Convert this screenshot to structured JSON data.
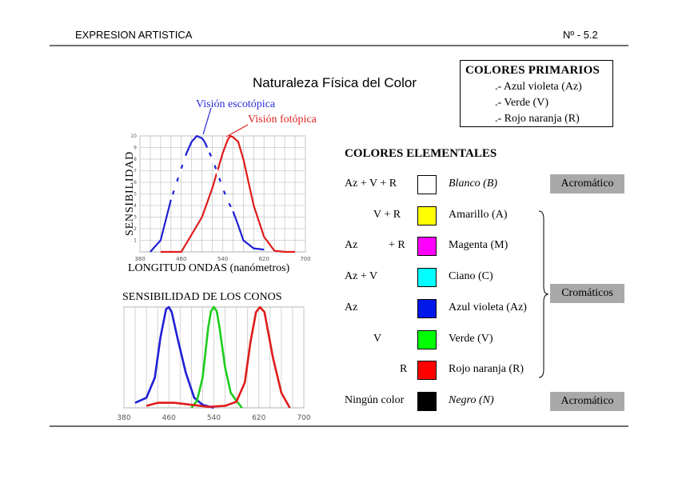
{
  "header": {
    "left": "EXPRESION ARTISTICA",
    "right": "Nº - 5.2"
  },
  "title": "Naturaleza Física del Color",
  "primarios": {
    "title": "COLORES PRIMARIOS",
    "items": [
      ".- Azul violeta (Az)",
      ".- Verde (V)",
      ".- Rojo naranja (R)"
    ]
  },
  "vision_chart": {
    "legend_blue": "Visión escotópica",
    "legend_red": "Visión fotópica",
    "ylabel": "SENSIBILIDAD",
    "xlabel": "LONGITUD ONDAS (nanómetros)"
  },
  "cones_chart": {
    "title": "SENSIBILIDAD DE LOS CONOS"
  },
  "elementales": {
    "title": "COLORES ELEMENTALES",
    "rows": [
      {
        "f1": "Az + V + R",
        "f2": "",
        "f3": "",
        "color": "#ffffff",
        "name": "Blanco (B)"
      },
      {
        "f1": "",
        "f2": "V + R",
        "f3": "",
        "color": "#ffff00",
        "name": "Amarillo (A)"
      },
      {
        "f1": "Az",
        "f2": "+ R",
        "f3": "",
        "color": "#ff00ff",
        "name": "Magenta (M)"
      },
      {
        "f1": "Az + V",
        "f2": "",
        "f3": "",
        "color": "#00ffff",
        "name": "Ciano (C)"
      },
      {
        "f1": "Az",
        "f2": "",
        "f3": "",
        "color": "#0018e8",
        "name": "Azul violeta (Az)"
      },
      {
        "f1": "",
        "f2": "V",
        "f3": "",
        "color": "#00ff00",
        "name": "Verde (V)"
      },
      {
        "f1": "",
        "f2": "",
        "f3": "R",
        "color": "#ff0000",
        "name": "Rojo naranja (R)"
      },
      {
        "f1": "Ningún color",
        "f2": "",
        "f3": "",
        "color": "#000000",
        "name": "Negro (N)"
      }
    ],
    "badge_top": "Acromático",
    "badge_mid": "Cromáticos",
    "badge_bottom": "Acromático"
  },
  "chart_data": [
    {
      "type": "line",
      "xlabel": "LONGITUD ONDAS (nanómetros)",
      "ylabel": "SENSIBILIDAD",
      "xlim": [
        380,
        700
      ],
      "ylim": [
        0,
        10
      ],
      "x_ticks": [
        380,
        460,
        540,
        620,
        700
      ],
      "y_ticks": [
        1,
        2,
        3,
        4,
        5,
        6,
        7,
        8,
        9,
        10
      ],
      "grid": true,
      "series": [
        {
          "name": "Visión escotópica",
          "color": "#1f1fd6",
          "x": [
            400,
            420,
            440,
            460,
            470,
            480,
            490,
            500,
            505,
            510,
            520,
            530,
            540,
            550,
            560,
            570,
            580,
            600,
            620
          ],
          "y": [
            0,
            1,
            4.5,
            7.2,
            8.5,
            9.5,
            10,
            9.8,
            9.5,
            9,
            8,
            6.8,
            5.5,
            4.4,
            3.5,
            2.3,
            1,
            0.3,
            0.2
          ]
        },
        {
          "name": "Visión fotópica",
          "color": "#e01b1b",
          "x": [
            420,
            460,
            480,
            500,
            520,
            540,
            550,
            555,
            560,
            570,
            580,
            590,
            600,
            620,
            640,
            660,
            680
          ],
          "y": [
            0,
            0,
            1.5,
            3,
            5.5,
            8.5,
            9.7,
            10,
            9.9,
            9.5,
            8,
            6,
            4,
            1.3,
            0.1,
            0,
            0
          ]
        }
      ]
    },
    {
      "type": "line",
      "title": "SENSIBILIDAD DE LOS CONOS",
      "xlim": [
        380,
        700
      ],
      "x_ticks": [
        380,
        460,
        540,
        620,
        700
      ],
      "grid": true,
      "series": [
        {
          "color": "#1f1fd6",
          "x": [
            400,
            420,
            435,
            445,
            455,
            460,
            465,
            475,
            490,
            505,
            520,
            540
          ],
          "y": [
            0.5,
            1,
            3,
            7,
            9.8,
            10,
            9.5,
            7,
            3.5,
            1,
            0.3,
            0
          ]
        },
        {
          "color": "#1ccd1c",
          "x": [
            500,
            510,
            520,
            530,
            535,
            540,
            545,
            550,
            560,
            570,
            580,
            590
          ],
          "y": [
            0,
            0.7,
            3,
            8,
            9.6,
            10,
            9.6,
            8,
            4,
            1.5,
            0.7,
            0
          ]
        },
        {
          "color": "#e01b1b",
          "x": [
            420,
            440,
            470,
            500,
            530,
            560,
            580,
            595,
            605,
            615,
            622,
            630,
            645,
            660,
            675
          ],
          "y": [
            0.2,
            0.5,
            0.5,
            0.3,
            0.1,
            0.2,
            0.6,
            2.5,
            6.5,
            9.5,
            10,
            9.5,
            5,
            1.5,
            0
          ]
        }
      ]
    }
  ]
}
